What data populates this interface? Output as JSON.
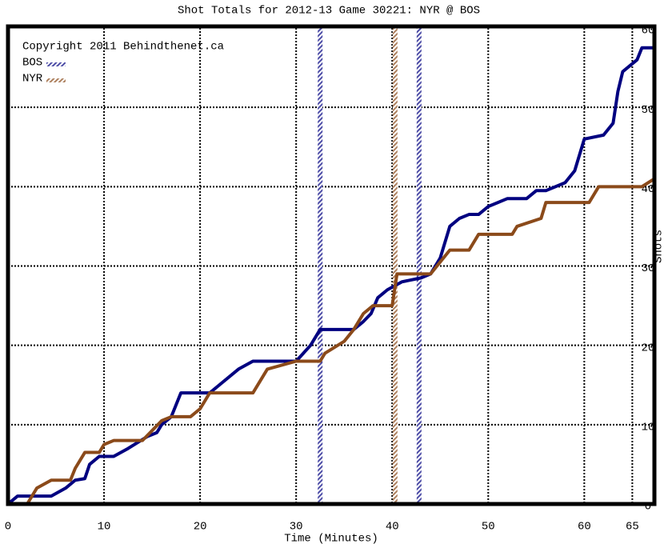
{
  "chart_data": {
    "type": "line",
    "title": "Shot Totals for 2012-13 Game 30221: NYR @ BOS",
    "annotation": "Copyright 2011 Behindthenet.ca",
    "x_label": "Time (Minutes)",
    "y_label": "Shots",
    "xlim": [
      0,
      67.3
    ],
    "ylim": [
      0,
      60
    ],
    "xticks": [
      0,
      10,
      20,
      30,
      40,
      50,
      60,
      65
    ],
    "yticks": [
      0,
      10,
      20,
      30,
      40,
      50,
      60
    ],
    "grid": true,
    "y_axis_side": "right",
    "legend": "upper left",
    "series": [
      {
        "name": "BOS",
        "color": "#000080",
        "marker_x": [
          32.5,
          42.8
        ],
        "x": [
          0,
          1,
          4.5,
          6,
          7,
          8,
          8.5,
          9.5,
          11,
          12.5,
          14.5,
          15.5,
          16,
          17,
          18,
          21,
          22,
          24,
          25.5,
          30,
          31.5,
          32.5,
          36,
          37,
          37.8,
          38.5,
          39.5,
          41,
          43,
          44,
          45,
          46,
          47,
          48,
          49,
          50,
          52,
          54,
          55,
          56,
          58,
          59,
          60,
          62,
          63,
          63.5,
          64,
          65.5,
          66,
          67.3
        ],
        "values": [
          0,
          1,
          1,
          2,
          3,
          3.2,
          5,
          6,
          6,
          7,
          8.5,
          9,
          10,
          11,
          14,
          14,
          15,
          17,
          18,
          18,
          20,
          22,
          22,
          23,
          24,
          26,
          27,
          28,
          28.5,
          29,
          31,
          35,
          36,
          36.5,
          36.5,
          37.5,
          38.5,
          38.5,
          39.5,
          39.5,
          40.5,
          42,
          46,
          46.5,
          48,
          52,
          54.5,
          56,
          57.5,
          57.5
        ]
      },
      {
        "name": "NYR",
        "color": "#8b4a1a",
        "marker_x": [
          40.3
        ],
        "x": [
          0,
          2,
          3,
          4.5,
          6.5,
          7,
          8,
          9.5,
          10,
          11,
          14,
          16,
          17,
          19,
          20,
          21,
          25.5,
          27,
          30,
          32.5,
          33,
          35,
          36,
          37,
          38,
          40,
          40.5,
          44,
          45,
          46,
          48,
          49,
          52.5,
          53,
          55.5,
          56,
          60.5,
          61.5,
          66,
          67.3
        ],
        "values": [
          0,
          0,
          2,
          3,
          3,
          4.5,
          6.5,
          6.5,
          7.5,
          8,
          8,
          10.5,
          11,
          11,
          12,
          14,
          14,
          17,
          18,
          18,
          19,
          20.5,
          22,
          24,
          25,
          25,
          29,
          29,
          30.5,
          32,
          32,
          34,
          34,
          35,
          36,
          38,
          38,
          40,
          40,
          41
        ]
      }
    ]
  }
}
